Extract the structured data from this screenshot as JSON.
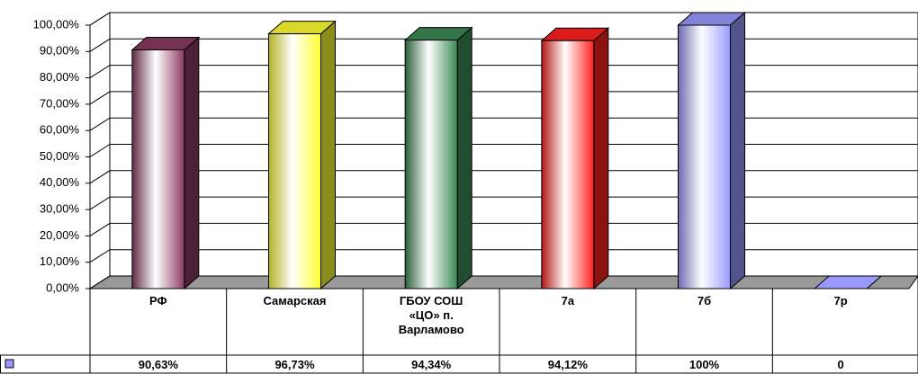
{
  "chart_data": {
    "type": "bar3d",
    "categories": [
      "РФ",
      "Самарская",
      "ГБОУ СОШ «ЦО» п. Варламово",
      "7а",
      "7б",
      "7р"
    ],
    "values": [
      90.63,
      96.73,
      94.34,
      94.12,
      100,
      0
    ],
    "value_labels": [
      "90,63%",
      "96,73%",
      "94,34%",
      "94,12%",
      "100%",
      "0"
    ],
    "colors": [
      "#8b3a62",
      "#ffff33",
      "#3a8a55",
      "#ff2020",
      "#9999ff",
      "#9999ff"
    ],
    "legend_color": "#9999ff",
    "ylim": [
      0,
      100
    ],
    "yticks": [
      {
        "value": 0,
        "label": "0,00%"
      },
      {
        "value": 10,
        "label": "10,00%"
      },
      {
        "value": 20,
        "label": "20,00%"
      },
      {
        "value": 30,
        "label": "30,00%"
      },
      {
        "value": 40,
        "label": "40,00%"
      },
      {
        "value": 50,
        "label": "50,00%"
      },
      {
        "value": 60,
        "label": "60,00%"
      },
      {
        "value": 70,
        "label": "70,00%"
      },
      {
        "value": 80,
        "label": "80,00%"
      },
      {
        "value": 90,
        "label": "90,00%"
      },
      {
        "value": 100,
        "label": "100,00%"
      }
    ],
    "grid": true,
    "data_table": true
  }
}
